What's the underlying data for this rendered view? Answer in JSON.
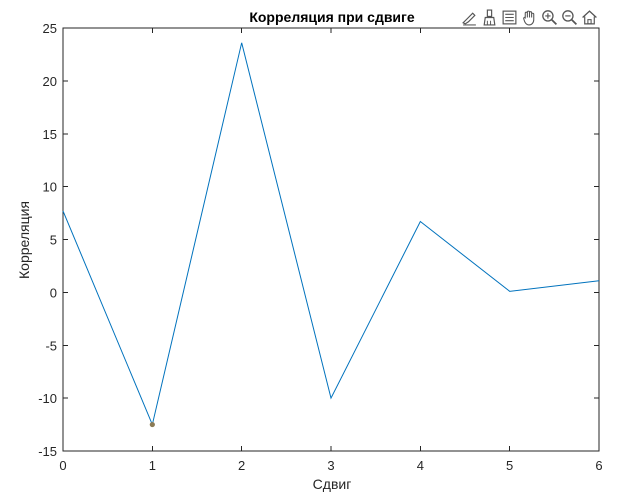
{
  "chart_data": {
    "type": "line",
    "title": "Корреляция при сдвиге",
    "xlabel": "Сдвиг",
    "ylabel": "Корреляция",
    "xlim": [
      0,
      6
    ],
    "ylim": [
      -15,
      25
    ],
    "xticks": [
      "0",
      "1",
      "2",
      "3",
      "4",
      "5",
      "6"
    ],
    "yticks": [
      "-15",
      "-10",
      "-5",
      "0",
      "5",
      "10",
      "15",
      "20",
      "25"
    ],
    "grid": false,
    "series": [
      {
        "x": [
          0,
          1,
          2,
          3,
          4,
          5,
          6
        ],
        "y": [
          7.7,
          -12.5,
          23.6,
          -10.0,
          6.7,
          0.1,
          1.1
        ],
        "color": "#0072bd"
      }
    ],
    "highlight_point": {
      "x": 1,
      "y": -12.5,
      "color": "#8c7b55"
    }
  },
  "toolbar": {
    "icons": [
      "edit-plot-icon",
      "brush-icon",
      "legend-icon",
      "pan-hand-icon",
      "zoom-in-icon",
      "zoom-out-icon",
      "home-icon"
    ]
  }
}
